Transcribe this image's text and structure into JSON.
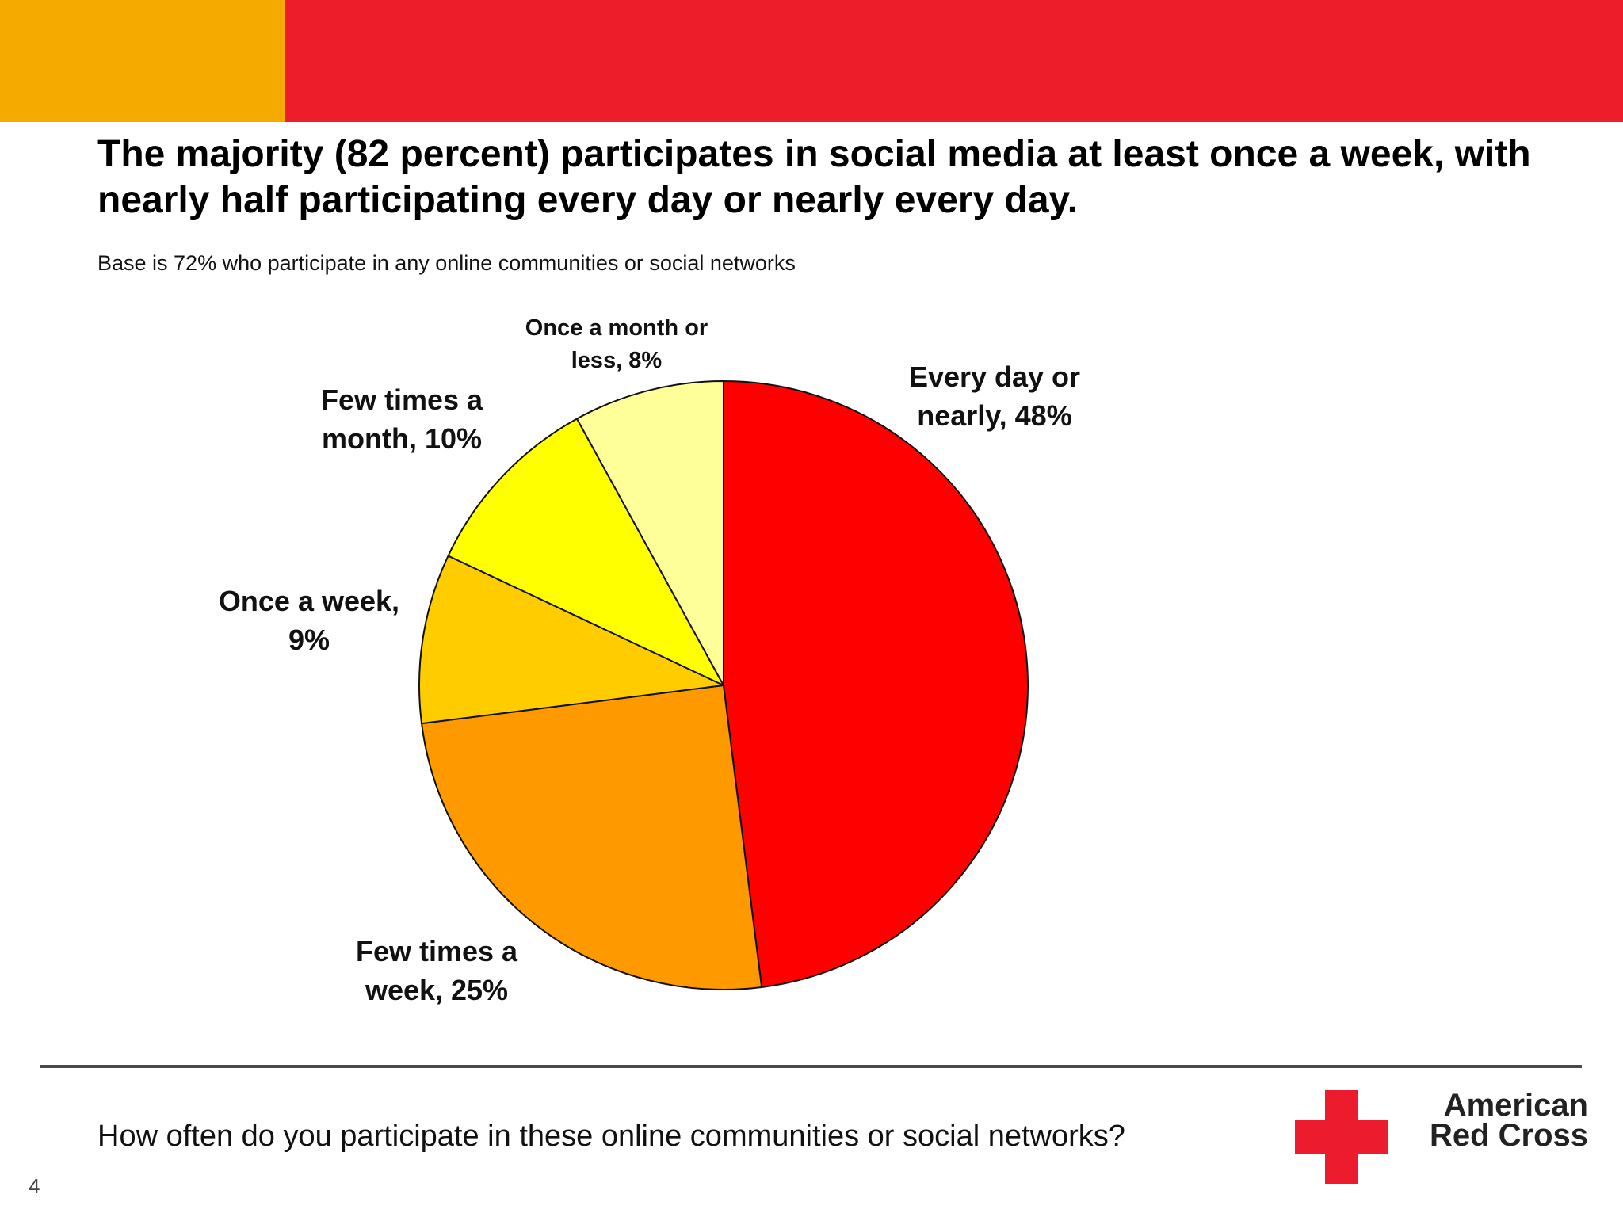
{
  "colors": {
    "band_left": "#F5AA00",
    "band_right": "#EE1D2A",
    "brand_red": "#ED1B2E"
  },
  "title": "The majority (82 percent) participates in social media at least once a week, with nearly half participating every day or nearly every day.",
  "subtitle": "Base is 72% who participate in any online communities or social networks",
  "question": "How often do you participate in these online communities or social networks?",
  "page_number": "4",
  "logo": {
    "icon": "red-cross-icon",
    "line1": "American",
    "line2": "Red Cross"
  },
  "chart_data": {
    "type": "pie",
    "start_angle_deg": 0,
    "direction": "clockwise",
    "slices": [
      {
        "label_lines": [
          "Every day or",
          "nearly, 48%"
        ],
        "category": "Every day or nearly",
        "value": 48,
        "color": "#FF0000"
      },
      {
        "label_lines": [
          "Few times a",
          "week, 25%"
        ],
        "category": "Few times a week",
        "value": 25,
        "color": "#FF9900"
      },
      {
        "label_lines": [
          "Once a week,",
          "9%"
        ],
        "category": "Once a week",
        "value": 9,
        "color": "#FFCC00"
      },
      {
        "label_lines": [
          "Few times a",
          "month, 10%"
        ],
        "category": "Few times a month",
        "value": 10,
        "color": "#FFFF00"
      },
      {
        "label_lines": [
          "Once a month or",
          "less, 8%"
        ],
        "category": "Once a month or less",
        "value": 8,
        "color": "#FFFF99"
      }
    ]
  }
}
